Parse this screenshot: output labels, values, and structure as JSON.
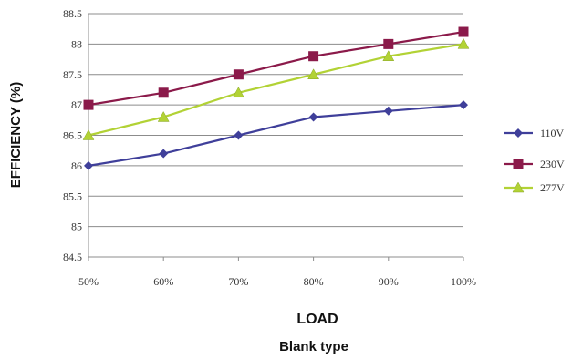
{
  "chart_data": {
    "type": "line",
    "title": "",
    "xlabel": "LOAD",
    "ylabel": "EFFICIENCY (%)",
    "subtitle_below": "Blank type",
    "categories": [
      "50%",
      "60%",
      "70%",
      "80%",
      "90%",
      "100%"
    ],
    "ylim": [
      84.5,
      88.5
    ],
    "yticks": [
      "84.5",
      "85",
      "85.5",
      "86",
      "86.5",
      "87",
      "87.5",
      "88",
      "88.5"
    ],
    "grid": "horizontal",
    "legend_position": "right",
    "series": [
      {
        "name": "110V",
        "values": [
          86.0,
          86.2,
          86.5,
          86.8,
          86.9,
          87.0
        ],
        "color": "#3f3f9a",
        "marker": "diamond"
      },
      {
        "name": "230V",
        "values": [
          87.0,
          87.2,
          87.5,
          87.8,
          88.0,
          88.2
        ],
        "color": "#8b1a4a",
        "marker": "square"
      },
      {
        "name": "277V",
        "values": [
          86.5,
          86.8,
          87.2,
          87.5,
          87.8,
          88.0
        ],
        "color": "#b2d235",
        "marker": "triangle"
      }
    ]
  }
}
